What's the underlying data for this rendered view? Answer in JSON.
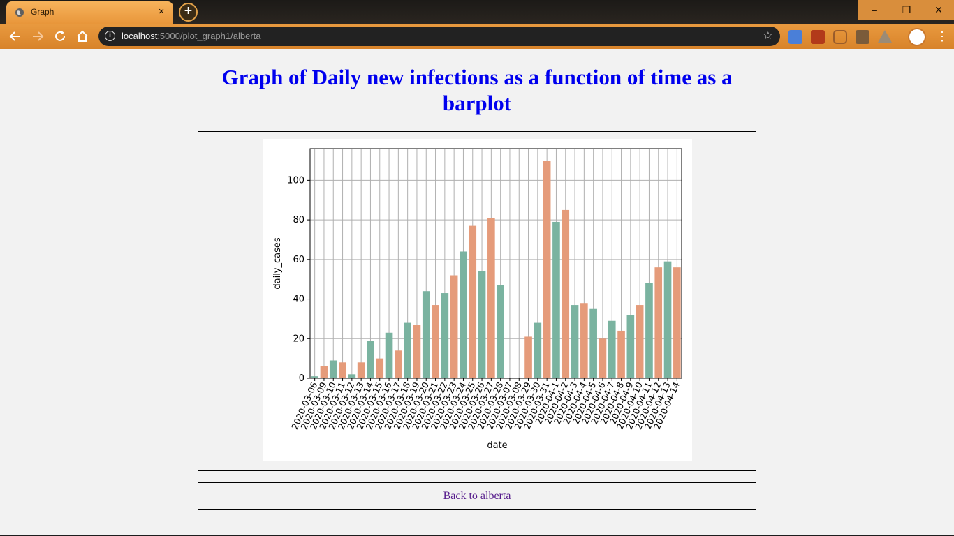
{
  "browser": {
    "tab_title": "Graph",
    "tab_close": "×",
    "new_tab": "+",
    "url_host": "localhost",
    "url_rest": ":5000/plot_graph1/alberta",
    "window_controls": {
      "minimize": "–",
      "restore": "❐",
      "close": "✕"
    },
    "icons": [
      "back-arrow-icon",
      "forward-arrow-icon",
      "reload-icon",
      "home-icon",
      "info-icon",
      "star-icon",
      "calendar-extension-icon",
      "pdf-extension-icon",
      "pocket-extension-icon",
      "keep-extension-icon",
      "drive-extension-icon",
      "profile-avatar",
      "menu-icon"
    ]
  },
  "page": {
    "title": "Graph of Daily new infections as a function of time as a barplot",
    "back_link": "Back to alberta"
  },
  "chart_data": {
    "type": "bar",
    "title": "",
    "xlabel": "date",
    "ylabel": "daily_cases",
    "ylim": [
      0,
      116
    ],
    "yticks": [
      0,
      20,
      40,
      60,
      80,
      100
    ],
    "grid": true,
    "colors": [
      "#7ab3a0",
      "#e59b7a"
    ],
    "categories": [
      "2020-03-06",
      "2020-03-09",
      "2020-03-10",
      "2020-03-11",
      "2020-03-12",
      "2020-03-13",
      "2020-03-14",
      "2020-03-15",
      "2020-03-16",
      "2020-03-17",
      "2020-03-18",
      "2020-03-19",
      "2020-03-20",
      "2020-03-21",
      "2020-03-22",
      "2020-03-23",
      "2020-03-24",
      "2020-03-25",
      "2020-03-26",
      "2020-03-27",
      "2020-03-28",
      "2020-03-07",
      "2020-03-08",
      "2020-03-29",
      "2020-03-30",
      "2020-03-31",
      "2020-04-1",
      "2020-04-2",
      "2020-04-3",
      "2020-04-4",
      "2020-04-5",
      "2020-04-6",
      "2020-04-7",
      "2020-04-8",
      "2020-04-9",
      "2020-04-10",
      "2020-04-11",
      "2020-04-12",
      "2020-04-13",
      "2020-04-14"
    ],
    "values": [
      1,
      6,
      9,
      8,
      2,
      8,
      19,
      10,
      23,
      14,
      28,
      27,
      44,
      37,
      43,
      52,
      64,
      77,
      54,
      81,
      47,
      0,
      0,
      21,
      28,
      110,
      79,
      85,
      37,
      38,
      35,
      20,
      29,
      24,
      32,
      37,
      48,
      56,
      59,
      56
    ]
  }
}
